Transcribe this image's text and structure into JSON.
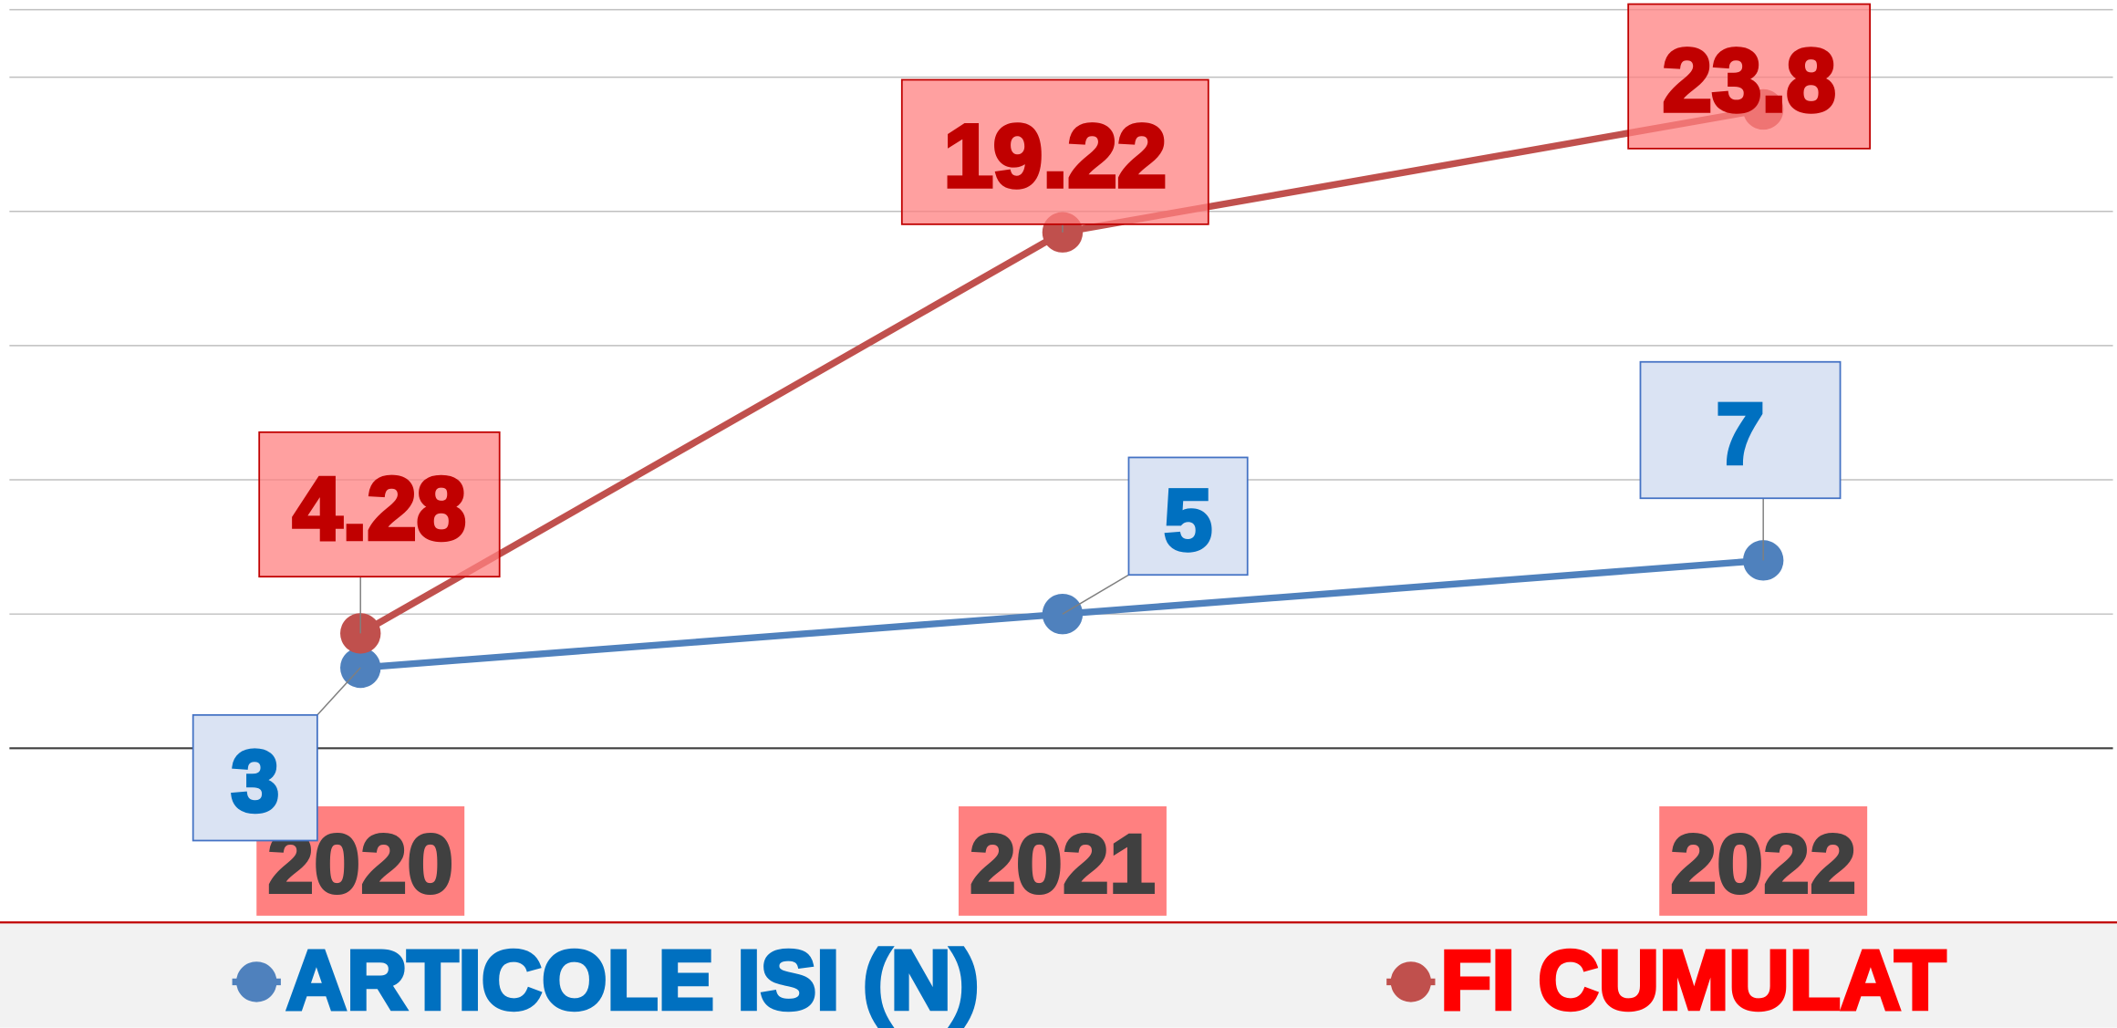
{
  "chart_data": {
    "type": "line",
    "categories": [
      "2020",
      "2021",
      "2022"
    ],
    "series": [
      {
        "name": "ARTICOLE ISI (N)",
        "color": "#4f81bd",
        "values": [
          3,
          5,
          7
        ]
      },
      {
        "name": "FI CUMULAT",
        "color": "#c0504d",
        "values": [
          4.28,
          19.22,
          23.8
        ]
      }
    ],
    "ylim": [
      0,
      25
    ],
    "yticks": [
      0,
      5,
      10,
      15,
      20,
      25
    ],
    "grid": true,
    "legend": "bottom"
  }
}
